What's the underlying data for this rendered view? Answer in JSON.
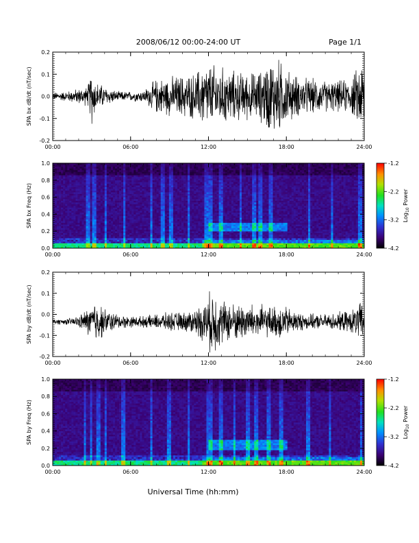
{
  "header": {
    "title": "2008/06/12  00:00-24:00 UT",
    "page": "Page 1/1"
  },
  "footer": {
    "xlabel": "Universal Time (hh:mm)"
  },
  "colorbar": {
    "ticks": [
      "-1.2",
      "-2.2",
      "-3.2",
      "-4.2"
    ],
    "label": "Log10 Power",
    "label_base": "Log",
    "label_sub": "10",
    "label_rest": " Power"
  },
  "chart_data": [
    {
      "type": "line",
      "ylabel": "SPA bx dB/dt (nT/sec)",
      "ylim": [
        -0.2,
        0.2
      ],
      "yticks": [
        "0.2",
        "0.1",
        "0.0",
        "-0.1",
        "-0.2"
      ],
      "xticks": [
        "00:00",
        "06:00",
        "12:00",
        "18:00",
        "24:00"
      ],
      "xlim_hours": [
        0,
        24
      ],
      "series": [
        {
          "x_hours": [
            0,
            1,
            2,
            2.7,
            3,
            3.3,
            4,
            5,
            6,
            7,
            7.5,
            8,
            9,
            10,
            11,
            11.5,
            12,
            12.5,
            13,
            14,
            15,
            16,
            16.5,
            17,
            17.5,
            18,
            19,
            20,
            21,
            22,
            23,
            23.5,
            24
          ],
          "envelope": [
            0.02,
            0.025,
            0.04,
            0.05,
            0.15,
            0.08,
            0.05,
            0.025,
            0.025,
            0.03,
            0.06,
            0.09,
            0.1,
            0.11,
            0.12,
            0.16,
            0.17,
            0.16,
            0.15,
            0.13,
            0.12,
            0.13,
            0.18,
            0.2,
            0.19,
            0.14,
            0.1,
            0.09,
            0.08,
            0.08,
            0.09,
            0.15,
            0.2
          ],
          "offset": 0.0
        }
      ]
    },
    {
      "type": "heatmap",
      "ylabel": "SPA bx Freq (Hz)",
      "ylim": [
        0.0,
        1.0
      ],
      "yticks": [
        "1.0",
        "0.8",
        "0.6",
        "0.4",
        "0.2",
        "0.0"
      ],
      "xticks": [
        "00:00",
        "06:00",
        "12:00",
        "18:00",
        "24:00"
      ],
      "zlim": [
        -4.2,
        -1.2
      ],
      "spike_hours": [
        2.7,
        3.2,
        4.1,
        5.5,
        7.6,
        8.5,
        9.1,
        10.5,
        11.8,
        12.2,
        13.0,
        14.5,
        15.5,
        16.0,
        16.8,
        19.8,
        21.5,
        23.7
      ],
      "band_hours": [
        12,
        18
      ],
      "band_freq_hz": [
        0.2,
        0.3
      ]
    },
    {
      "type": "line",
      "ylabel": "SPA by dB/dt (nT/sec)",
      "ylim": [
        -0.2,
        0.2
      ],
      "yticks": [
        "0.2",
        "0.1",
        "0.0",
        "-0.1",
        "-0.2"
      ],
      "xticks": [
        "00:00",
        "06:00",
        "12:00",
        "18:00",
        "24:00"
      ],
      "xlim_hours": [
        0,
        24
      ],
      "series": [
        {
          "x_hours": [
            0,
            1,
            2,
            2.5,
            3,
            3.3,
            4,
            5,
            6,
            7,
            8,
            9,
            10,
            11,
            11.5,
            12,
            12.3,
            13,
            14,
            15,
            16,
            17,
            17.5,
            18,
            19,
            20,
            21,
            22,
            23,
            23.6,
            24
          ],
          "envelope": [
            0.015,
            0.015,
            0.03,
            0.06,
            0.09,
            0.12,
            0.07,
            0.04,
            0.03,
            0.03,
            0.04,
            0.05,
            0.05,
            0.07,
            0.1,
            0.14,
            0.19,
            0.12,
            0.1,
            0.1,
            0.09,
            0.08,
            0.1,
            0.08,
            0.05,
            0.04,
            0.04,
            0.05,
            0.06,
            0.1,
            0.11
          ],
          "offset": -0.035
        }
      ]
    },
    {
      "type": "heatmap",
      "ylabel": "SPA by Freq (Hz)",
      "ylim": [
        0.0,
        1.0
      ],
      "yticks": [
        "1.0",
        "0.8",
        "0.6",
        "0.4",
        "0.2",
        "0.0"
      ],
      "xticks": [
        "00:00",
        "06:00",
        "12:00",
        "18:00",
        "24:00"
      ],
      "zlim": [
        -4.2,
        -1.2
      ],
      "spike_hours": [
        2.5,
        3.0,
        3.5,
        4.1,
        5.4,
        7.6,
        9.0,
        10.5,
        11.9,
        12.2,
        13.0,
        14.0,
        15.0,
        15.7,
        16.6,
        17.6,
        19.7,
        21.4,
        23.8
      ],
      "band_hours": [
        12,
        18
      ],
      "band_freq_hz": [
        0.18,
        0.3
      ]
    }
  ]
}
